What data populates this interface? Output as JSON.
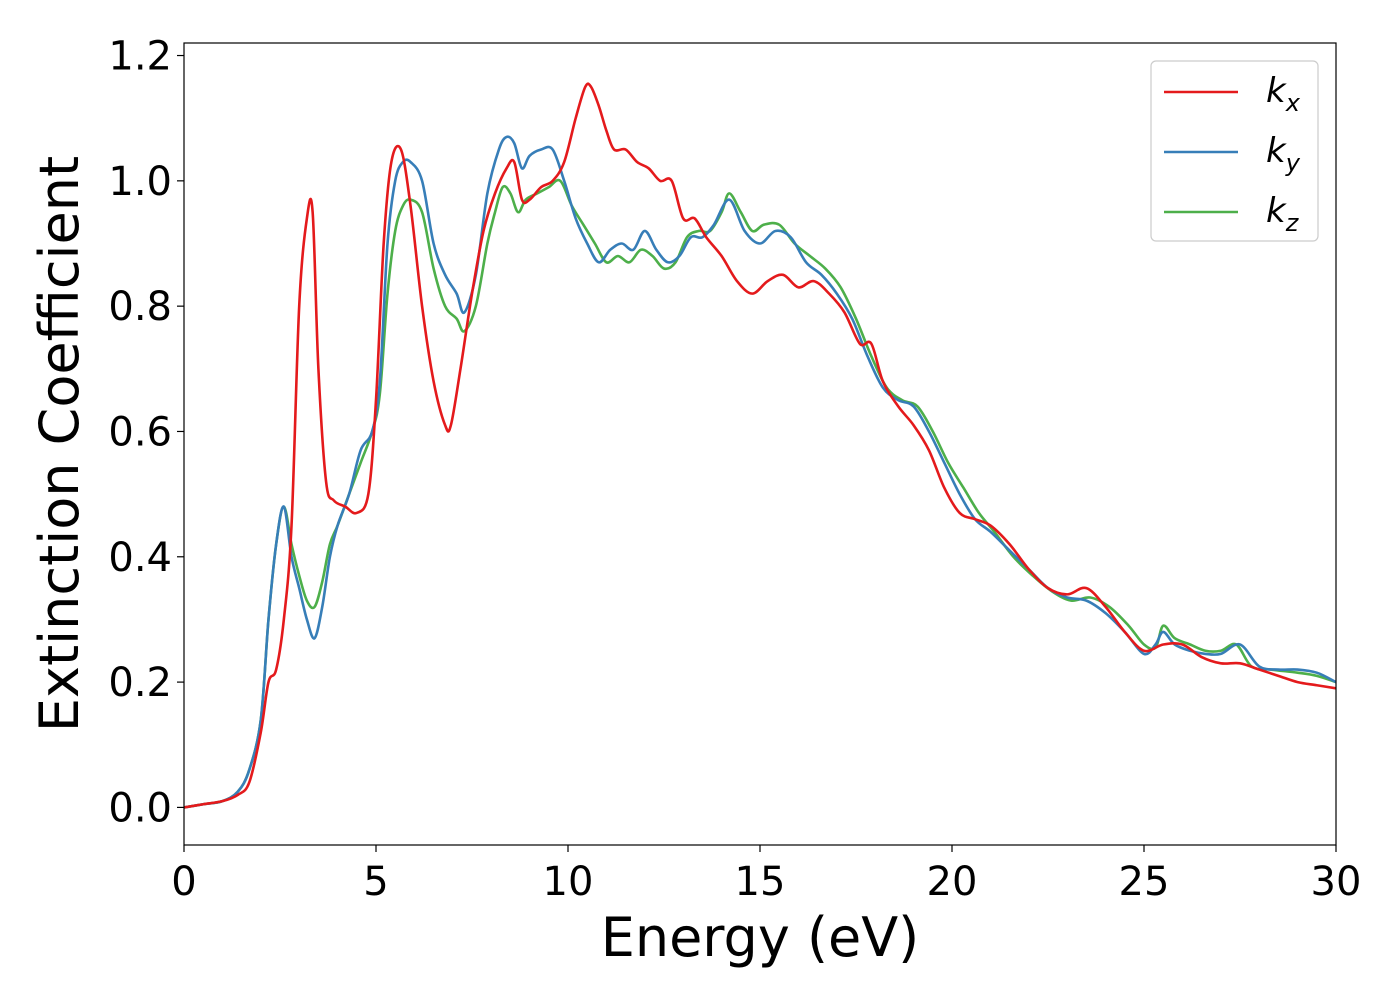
{
  "chart_data": {
    "type": "line",
    "xlabel": "Energy (eV)",
    "ylabel": "Extinction Coefficient",
    "xlim": [
      0,
      30
    ],
    "ylim": [
      -0.06,
      1.22
    ],
    "xticks": [
      0,
      5,
      10,
      15,
      20,
      25,
      30
    ],
    "xtick_labels": [
      "0",
      "5",
      "10",
      "15",
      "20",
      "25",
      "30"
    ],
    "yticks": [
      0.0,
      0.2,
      0.4,
      0.6,
      0.8,
      1.0,
      1.2
    ],
    "ytick_labels": [
      "0.0",
      "0.2",
      "0.4",
      "0.6",
      "0.8",
      "1.0",
      "1.2"
    ],
    "grid": false,
    "legend_position": "top-right",
    "series": [
      {
        "name": "k_x",
        "label_main": "k",
        "label_sub": "x",
        "color": "#e41a1c",
        "x": [
          0,
          0.5,
          1,
          1.4,
          1.7,
          2.0,
          2.2,
          2.4,
          2.6,
          2.8,
          3.0,
          3.2,
          3.35,
          3.5,
          3.7,
          3.9,
          4.2,
          4.5,
          4.8,
          5.0,
          5.2,
          5.4,
          5.65,
          5.9,
          6.2,
          6.5,
          6.8,
          6.95,
          7.2,
          7.5,
          7.8,
          8.1,
          8.4,
          8.6,
          8.8,
          9.0,
          9.3,
          9.6,
          9.9,
          10.2,
          10.45,
          10.6,
          10.8,
          11.0,
          11.2,
          11.5,
          11.8,
          12.1,
          12.4,
          12.7,
          13.0,
          13.3,
          13.6,
          14.0,
          14.4,
          14.8,
          15.2,
          15.6,
          16.0,
          16.4,
          16.8,
          17.2,
          17.6,
          17.9,
          18.2,
          18.6,
          19.0,
          19.4,
          19.8,
          20.2,
          20.6,
          21.0,
          21.5,
          22.0,
          22.5,
          23.0,
          23.5,
          24.0,
          24.5,
          25.0,
          25.5,
          26.0,
          26.5,
          27.0,
          27.5,
          28.0,
          28.5,
          29.0,
          29.5,
          30.0
        ],
        "y": [
          0.0,
          0.005,
          0.01,
          0.02,
          0.04,
          0.12,
          0.2,
          0.22,
          0.3,
          0.45,
          0.8,
          0.94,
          0.95,
          0.7,
          0.52,
          0.49,
          0.48,
          0.47,
          0.5,
          0.65,
          0.9,
          1.03,
          1.05,
          0.96,
          0.8,
          0.68,
          0.61,
          0.61,
          0.7,
          0.82,
          0.92,
          0.98,
          1.02,
          1.03,
          0.97,
          0.97,
          0.99,
          1.0,
          1.03,
          1.1,
          1.15,
          1.15,
          1.12,
          1.08,
          1.05,
          1.05,
          1.03,
          1.02,
          1.0,
          1.0,
          0.94,
          0.94,
          0.91,
          0.88,
          0.84,
          0.82,
          0.84,
          0.85,
          0.83,
          0.84,
          0.82,
          0.79,
          0.74,
          0.74,
          0.68,
          0.64,
          0.61,
          0.57,
          0.51,
          0.47,
          0.46,
          0.45,
          0.42,
          0.38,
          0.35,
          0.34,
          0.35,
          0.32,
          0.28,
          0.25,
          0.26,
          0.26,
          0.24,
          0.23,
          0.23,
          0.22,
          0.21,
          0.2,
          0.195,
          0.19
        ]
      },
      {
        "name": "k_y",
        "label_main": "k",
        "label_sub": "y",
        "color": "#377eb8",
        "x": [
          0,
          0.5,
          1,
          1.4,
          1.7,
          2.0,
          2.2,
          2.4,
          2.6,
          2.8,
          3.0,
          3.2,
          3.4,
          3.6,
          3.8,
          4.0,
          4.3,
          4.6,
          4.9,
          5.1,
          5.3,
          5.5,
          5.7,
          5.9,
          6.2,
          6.5,
          6.8,
          7.1,
          7.3,
          7.6,
          7.9,
          8.2,
          8.4,
          8.6,
          8.8,
          9.0,
          9.3,
          9.6,
          9.9,
          10.2,
          10.5,
          10.8,
          11.1,
          11.4,
          11.7,
          12.0,
          12.3,
          12.6,
          12.9,
          13.2,
          13.5,
          13.8,
          14.2,
          14.6,
          15.0,
          15.4,
          15.8,
          16.2,
          16.6,
          17.0,
          17.4,
          17.8,
          18.2,
          18.6,
          19.0,
          19.4,
          19.8,
          20.2,
          20.6,
          21.0,
          21.5,
          22.0,
          22.5,
          23.0,
          23.5,
          24.0,
          24.5,
          25.0,
          25.3,
          25.5,
          25.8,
          26.2,
          26.6,
          27.0,
          27.5,
          28.0,
          28.5,
          29.0,
          29.5,
          30.0
        ],
        "y": [
          0.0,
          0.005,
          0.01,
          0.025,
          0.06,
          0.14,
          0.3,
          0.42,
          0.48,
          0.4,
          0.35,
          0.3,
          0.27,
          0.32,
          0.4,
          0.45,
          0.5,
          0.57,
          0.6,
          0.68,
          0.9,
          1.0,
          1.03,
          1.03,
          1.0,
          0.9,
          0.85,
          0.82,
          0.79,
          0.85,
          0.98,
          1.05,
          1.07,
          1.06,
          1.02,
          1.04,
          1.05,
          1.05,
          1.0,
          0.94,
          0.9,
          0.87,
          0.89,
          0.9,
          0.89,
          0.92,
          0.89,
          0.87,
          0.88,
          0.91,
          0.91,
          0.93,
          0.97,
          0.92,
          0.9,
          0.92,
          0.91,
          0.87,
          0.85,
          0.82,
          0.78,
          0.72,
          0.67,
          0.65,
          0.64,
          0.6,
          0.55,
          0.5,
          0.46,
          0.44,
          0.41,
          0.38,
          0.35,
          0.335,
          0.33,
          0.31,
          0.28,
          0.245,
          0.26,
          0.28,
          0.26,
          0.25,
          0.245,
          0.245,
          0.26,
          0.225,
          0.22,
          0.22,
          0.215,
          0.2
        ]
      },
      {
        "name": "k_z",
        "label_main": "k",
        "label_sub": "z",
        "color": "#4daf4a",
        "x": [
          0,
          0.5,
          1,
          1.4,
          1.7,
          2.0,
          2.2,
          2.4,
          2.6,
          2.8,
          3.0,
          3.2,
          3.4,
          3.6,
          3.8,
          4.0,
          4.3,
          4.6,
          4.9,
          5.1,
          5.3,
          5.5,
          5.7,
          5.9,
          6.2,
          6.5,
          6.8,
          7.1,
          7.3,
          7.6,
          7.9,
          8.1,
          8.3,
          8.5,
          8.7,
          8.9,
          9.2,
          9.5,
          9.8,
          10.1,
          10.4,
          10.7,
          11.0,
          11.3,
          11.6,
          11.9,
          12.2,
          12.5,
          12.8,
          13.1,
          13.4,
          13.7,
          14.0,
          14.2,
          14.5,
          14.8,
          15.1,
          15.5,
          15.9,
          16.3,
          16.7,
          17.1,
          17.5,
          17.9,
          18.3,
          18.7,
          19.1,
          19.5,
          19.9,
          20.3,
          20.7,
          21.1,
          21.6,
          22.1,
          22.6,
          23.1,
          23.6,
          24.1,
          24.6,
          25.0,
          25.3,
          25.5,
          25.8,
          26.2,
          26.6,
          27.0,
          27.4,
          27.8,
          28.3,
          29.0,
          29.5,
          30.0
        ],
        "y": [
          0.0,
          0.005,
          0.01,
          0.025,
          0.06,
          0.14,
          0.3,
          0.42,
          0.48,
          0.42,
          0.37,
          0.33,
          0.32,
          0.36,
          0.42,
          0.45,
          0.5,
          0.55,
          0.6,
          0.66,
          0.82,
          0.92,
          0.96,
          0.97,
          0.95,
          0.86,
          0.8,
          0.78,
          0.76,
          0.8,
          0.9,
          0.95,
          0.99,
          0.98,
          0.95,
          0.97,
          0.98,
          0.99,
          1.0,
          0.96,
          0.93,
          0.9,
          0.87,
          0.88,
          0.87,
          0.89,
          0.88,
          0.86,
          0.87,
          0.91,
          0.92,
          0.92,
          0.95,
          0.98,
          0.95,
          0.92,
          0.93,
          0.93,
          0.9,
          0.88,
          0.86,
          0.83,
          0.78,
          0.72,
          0.67,
          0.65,
          0.64,
          0.6,
          0.55,
          0.51,
          0.47,
          0.44,
          0.4,
          0.37,
          0.345,
          0.33,
          0.335,
          0.32,
          0.29,
          0.26,
          0.255,
          0.29,
          0.27,
          0.26,
          0.25,
          0.25,
          0.26,
          0.225,
          0.22,
          0.215,
          0.21,
          0.2
        ]
      }
    ]
  }
}
